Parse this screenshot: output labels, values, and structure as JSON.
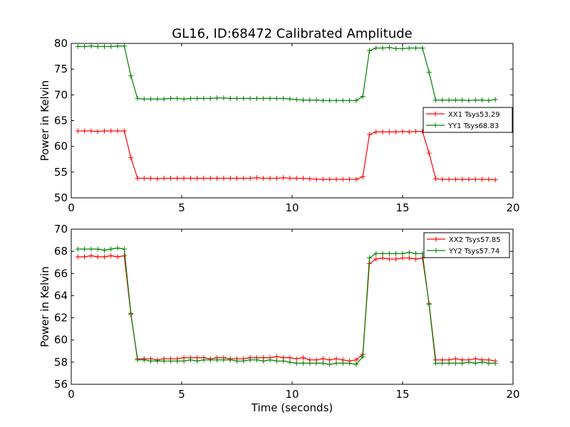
{
  "title": "GL16, ID:68472 Calibrated Amplitude",
  "chart_data": [
    {
      "type": "line",
      "title": "GL16, ID:68472 Calibrated Amplitude",
      "xlabel": "",
      "ylabel": "Power in Kelvin",
      "xlim": [
        0,
        20
      ],
      "ylim": [
        50,
        80
      ],
      "xticks": [
        0,
        5,
        10,
        15,
        20
      ],
      "yticks": [
        50,
        55,
        60,
        65,
        70,
        75,
        80
      ],
      "grid": false,
      "legend_position": "center-right",
      "x": [
        0.3,
        0.6,
        0.9,
        1.2,
        1.5,
        1.8,
        2.1,
        2.4,
        2.7,
        3.0,
        3.3,
        3.6,
        3.9,
        4.2,
        4.5,
        4.8,
        5.1,
        5.4,
        5.7,
        6.0,
        6.3,
        6.6,
        6.9,
        7.2,
        7.5,
        7.8,
        8.1,
        8.4,
        8.7,
        9.0,
        9.3,
        9.6,
        9.9,
        10.2,
        10.5,
        10.8,
        11.1,
        11.4,
        11.7,
        12.0,
        12.3,
        12.6,
        12.9,
        13.2,
        13.5,
        13.8,
        14.1,
        14.4,
        14.7,
        15.0,
        15.3,
        15.6,
        15.9,
        16.2,
        16.5,
        16.8,
        17.1,
        17.4,
        17.7,
        18.0,
        18.3,
        18.6,
        18.9,
        19.2
      ],
      "series": [
        {
          "name": "XX1 Tsys53.29",
          "color": "#ff0000",
          "values": [
            63.0,
            63.0,
            63.0,
            62.9,
            63.0,
            63.0,
            63.0,
            63.0,
            57.8,
            53.8,
            53.8,
            53.8,
            53.7,
            53.8,
            53.8,
            53.8,
            53.8,
            53.8,
            53.8,
            53.8,
            53.8,
            53.8,
            53.8,
            53.8,
            53.8,
            53.8,
            53.8,
            53.9,
            53.8,
            53.8,
            53.8,
            53.9,
            53.8,
            53.8,
            53.8,
            53.7,
            53.6,
            53.6,
            53.6,
            53.6,
            53.6,
            53.6,
            53.6,
            54.1,
            62.3,
            62.8,
            62.8,
            62.8,
            62.8,
            62.9,
            62.8,
            62.9,
            62.9,
            58.7,
            53.7,
            53.6,
            53.6,
            53.6,
            53.6,
            53.6,
            53.6,
            53.6,
            53.6,
            53.5
          ]
        },
        {
          "name": "YY1 Tsys68.83",
          "color": "#008000",
          "values": [
            79.4,
            79.4,
            79.5,
            79.4,
            79.4,
            79.4,
            79.5,
            79.5,
            73.7,
            69.3,
            69.2,
            69.2,
            69.2,
            69.2,
            69.3,
            69.3,
            69.2,
            69.3,
            69.3,
            69.3,
            69.3,
            69.4,
            69.4,
            69.3,
            69.3,
            69.3,
            69.3,
            69.3,
            69.3,
            69.3,
            69.3,
            69.3,
            69.2,
            69.1,
            69.0,
            69.0,
            69.0,
            68.9,
            68.9,
            68.9,
            68.9,
            68.9,
            68.9,
            69.7,
            78.6,
            79.1,
            79.1,
            79.2,
            79.0,
            79.0,
            79.1,
            79.1,
            79.1,
            74.4,
            69.0,
            69.0,
            69.0,
            69.0,
            69.0,
            68.9,
            69.0,
            69.0,
            68.9,
            69.1
          ]
        }
      ]
    },
    {
      "type": "line",
      "title": "",
      "xlabel": "Time (seconds)",
      "ylabel": "Power in Kelvin",
      "xlim": [
        0,
        20
      ],
      "ylim": [
        56,
        70
      ],
      "xticks": [
        0,
        5,
        10,
        15,
        20
      ],
      "yticks": [
        56,
        58,
        60,
        62,
        64,
        66,
        68,
        70
      ],
      "grid": false,
      "legend_position": "top-right",
      "x": [
        0.3,
        0.6,
        0.9,
        1.2,
        1.5,
        1.8,
        2.1,
        2.4,
        2.7,
        3.0,
        3.3,
        3.6,
        3.9,
        4.2,
        4.5,
        4.8,
        5.1,
        5.4,
        5.7,
        6.0,
        6.3,
        6.6,
        6.9,
        7.2,
        7.5,
        7.8,
        8.1,
        8.4,
        8.7,
        9.0,
        9.3,
        9.6,
        9.9,
        10.2,
        10.5,
        10.8,
        11.1,
        11.4,
        11.7,
        12.0,
        12.3,
        12.6,
        12.9,
        13.2,
        13.5,
        13.8,
        14.1,
        14.4,
        14.7,
        15.0,
        15.3,
        15.6,
        15.9,
        16.2,
        16.5,
        16.8,
        17.1,
        17.4,
        17.7,
        18.0,
        18.3,
        18.6,
        18.9,
        19.2
      ],
      "series": [
        {
          "name": "XX2 Tsys57.85",
          "color": "#ff0000",
          "values": [
            67.5,
            67.5,
            67.6,
            67.5,
            67.5,
            67.6,
            67.5,
            67.6,
            62.3,
            58.3,
            58.3,
            58.3,
            58.2,
            58.3,
            58.3,
            58.3,
            58.4,
            58.4,
            58.4,
            58.4,
            58.3,
            58.4,
            58.4,
            58.3,
            58.3,
            58.3,
            58.4,
            58.4,
            58.4,
            58.4,
            58.5,
            58.4,
            58.4,
            58.3,
            58.4,
            58.2,
            58.2,
            58.3,
            58.2,
            58.3,
            58.2,
            58.1,
            58.2,
            58.7,
            66.9,
            67.3,
            67.4,
            67.3,
            67.3,
            67.4,
            67.4,
            67.3,
            67.4,
            63.3,
            58.2,
            58.2,
            58.2,
            58.3,
            58.2,
            58.2,
            58.3,
            58.2,
            58.2,
            58.1
          ]
        },
        {
          "name": "YY2 Tsys57.74",
          "color": "#008000",
          "values": [
            68.2,
            68.2,
            68.2,
            68.2,
            68.1,
            68.2,
            68.3,
            68.2,
            62.4,
            58.2,
            58.2,
            58.1,
            58.1,
            58.1,
            58.1,
            58.1,
            58.1,
            58.2,
            58.1,
            58.2,
            58.2,
            58.2,
            58.2,
            58.2,
            58.1,
            58.1,
            58.2,
            58.2,
            58.1,
            58.2,
            58.1,
            58.1,
            58.0,
            57.9,
            57.9,
            57.9,
            57.9,
            57.9,
            57.8,
            57.9,
            57.9,
            57.9,
            57.8,
            58.5,
            67.4,
            67.8,
            67.8,
            67.8,
            67.8,
            67.8,
            67.9,
            67.8,
            67.8,
            63.2,
            57.9,
            57.9,
            57.9,
            57.9,
            57.9,
            58.0,
            57.9,
            58.0,
            57.9,
            57.9
          ]
        }
      ]
    }
  ]
}
